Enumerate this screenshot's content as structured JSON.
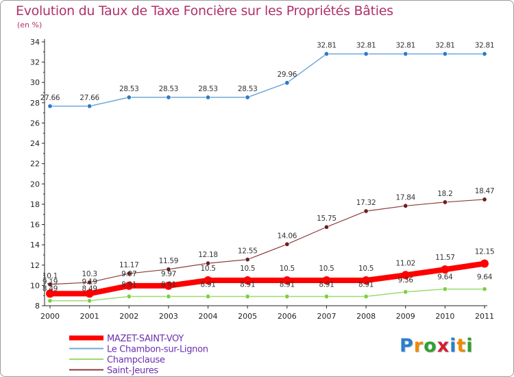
{
  "header": {
    "title": "Evolution du Taux de Taxe Foncière sur les Propriétés Bâties",
    "unit": "(en %)"
  },
  "logo": {
    "letters": [
      "P",
      "r",
      "o",
      "x",
      "i",
      "t",
      "i"
    ],
    "colors": [
      "#2a7fd0",
      "#f08a00",
      "#2fa030",
      "#d02030",
      "#2a7fd0",
      "#f08a00",
      "#2fa030"
    ]
  },
  "chart_data": {
    "type": "line",
    "x": [
      "2000",
      "2001",
      "2002",
      "2003",
      "2004",
      "2005",
      "2006",
      "2007",
      "2008",
      "2009",
      "2010",
      "2011"
    ],
    "ylim": [
      8,
      34
    ],
    "yticks": [
      8,
      10,
      12,
      14,
      16,
      18,
      20,
      22,
      24,
      26,
      28,
      30,
      32,
      34
    ],
    "grid": false,
    "legend_position": "bottom-left",
    "series": [
      {
        "name": "MAZET-SAINT-VOY",
        "color": "#ff0000",
        "width": 8,
        "marker": "#ff0000",
        "values": [
          9.19,
          9.19,
          9.97,
          9.97,
          10.5,
          10.5,
          10.5,
          10.5,
          10.5,
          11.02,
          11.57,
          12.15
        ],
        "labels": [
          "9.19",
          "9.19",
          "9.97",
          "9.97",
          "10.5",
          "10.5",
          "10.5",
          "10.5",
          "10.5",
          "11.02",
          "11.57",
          "12.15"
        ]
      },
      {
        "name": "Le Chambon-sur-Lignon",
        "color": "#6fa8dc",
        "width": 1.5,
        "marker": "#2b7bc4",
        "values": [
          27.66,
          27.66,
          28.53,
          28.53,
          28.53,
          28.53,
          29.96,
          32.81,
          32.81,
          32.81,
          32.81,
          32.81
        ],
        "labels": [
          "27.66",
          "27.66",
          "28.53",
          "28.53",
          "28.53",
          "28.53",
          "29.96",
          "32.81",
          "32.81",
          "32.81",
          "32.81",
          "32.81"
        ]
      },
      {
        "name": "Champclause",
        "color": "#9bdc6e",
        "width": 1.5,
        "marker": "#7ccf3f",
        "values": [
          8.49,
          8.49,
          8.91,
          8.91,
          8.91,
          8.91,
          8.91,
          8.91,
          8.91,
          9.36,
          9.64,
          9.64
        ],
        "labels": [
          "8.49",
          "8.49",
          "8.91",
          "8.91",
          "8.91",
          "8.91",
          "8.91",
          "8.91",
          "8.91",
          "9.36",
          "9.64",
          "9.64"
        ]
      },
      {
        "name": "Saint-Jeures",
        "color": "#8b3a3a",
        "width": 1.2,
        "marker": "#6b1f1f",
        "values": [
          10.1,
          10.3,
          11.17,
          11.59,
          12.18,
          12.55,
          14.06,
          15.75,
          17.32,
          17.84,
          18.2,
          18.47
        ],
        "labels": [
          "10.1",
          "10.3",
          "11.17",
          "11.59",
          "12.18",
          "12.55",
          "14.06",
          "15.75",
          "17.32",
          "17.84",
          "18.2",
          "18.47"
        ]
      }
    ]
  }
}
